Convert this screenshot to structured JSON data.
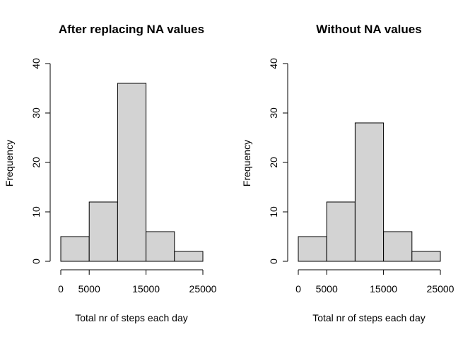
{
  "chart_data": [
    {
      "type": "bar",
      "title": "After replacing NA values",
      "xlabel": "Total nr of steps each day",
      "ylabel": "Frequency",
      "bins": [
        [
          0,
          5000
        ],
        [
          5000,
          10000
        ],
        [
          10000,
          15000
        ],
        [
          15000,
          20000
        ],
        [
          20000,
          25000
        ]
      ],
      "values": [
        5,
        12,
        36,
        6,
        2
      ],
      "xticks": [
        0,
        5000,
        15000,
        25000
      ],
      "xtick_labels": [
        "0",
        "5000",
        "15000",
        "25000"
      ],
      "yticks": [
        0,
        10,
        20,
        30,
        40
      ],
      "ytick_labels": [
        "0",
        "10",
        "20",
        "30",
        "40"
      ],
      "xlim": [
        0,
        25000
      ],
      "ylim": [
        0,
        40
      ],
      "bar_color": "#d3d3d3",
      "grid": false
    },
    {
      "type": "bar",
      "title": "Without NA values",
      "xlabel": "Total nr of steps each day",
      "ylabel": "Frequency",
      "bins": [
        [
          0,
          5000
        ],
        [
          5000,
          10000
        ],
        [
          10000,
          15000
        ],
        [
          15000,
          20000
        ],
        [
          20000,
          25000
        ]
      ],
      "values": [
        5,
        12,
        28,
        6,
        2
      ],
      "xticks": [
        0,
        5000,
        15000,
        25000
      ],
      "xtick_labels": [
        "0",
        "5000",
        "15000",
        "25000"
      ],
      "yticks": [
        0,
        10,
        20,
        30,
        40
      ],
      "ytick_labels": [
        "0",
        "10",
        "20",
        "30",
        "40"
      ],
      "xlim": [
        0,
        25000
      ],
      "ylim": [
        0,
        40
      ],
      "bar_color": "#d3d3d3",
      "grid": false
    }
  ]
}
